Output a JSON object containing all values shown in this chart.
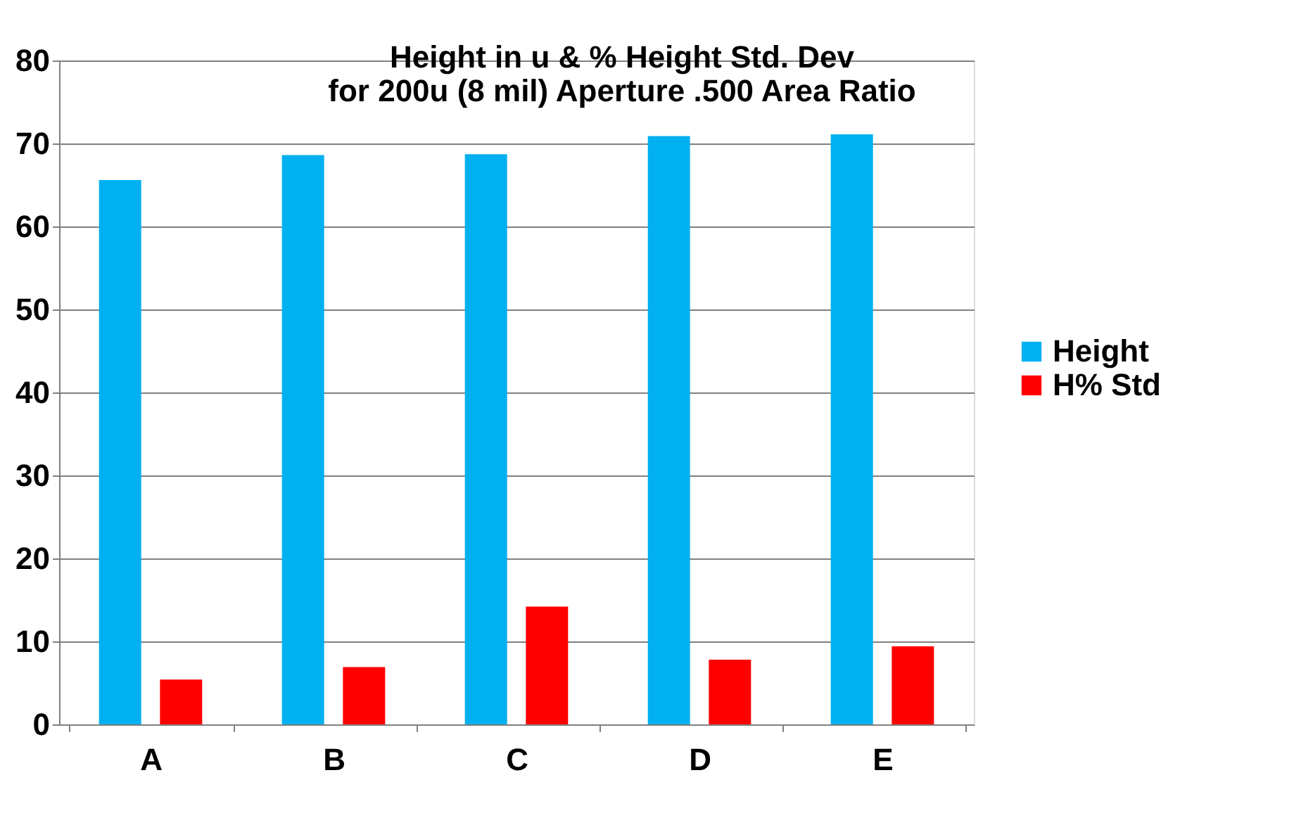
{
  "chart_data": {
    "type": "bar",
    "title": [
      "Height in u & % Height Std. Dev",
      "for 200u (8 mil) Aperture .500 Area Ratio"
    ],
    "categories": [
      "A",
      "B",
      "C",
      "D",
      "E"
    ],
    "series": [
      {
        "name": "Height",
        "color": "#00b0f0",
        "values": [
          65.6,
          68.6,
          68.7,
          70.9,
          71.1
        ]
      },
      {
        "name": "H% Std",
        "color": "#ff0000",
        "values": [
          5.4,
          6.9,
          14.2,
          7.8,
          9.4
        ]
      }
    ],
    "ylim": [
      0,
      80
    ],
    "yticks": [
      0,
      10,
      20,
      30,
      40,
      50,
      60,
      70,
      80
    ],
    "grid": "y",
    "legend": "right"
  }
}
